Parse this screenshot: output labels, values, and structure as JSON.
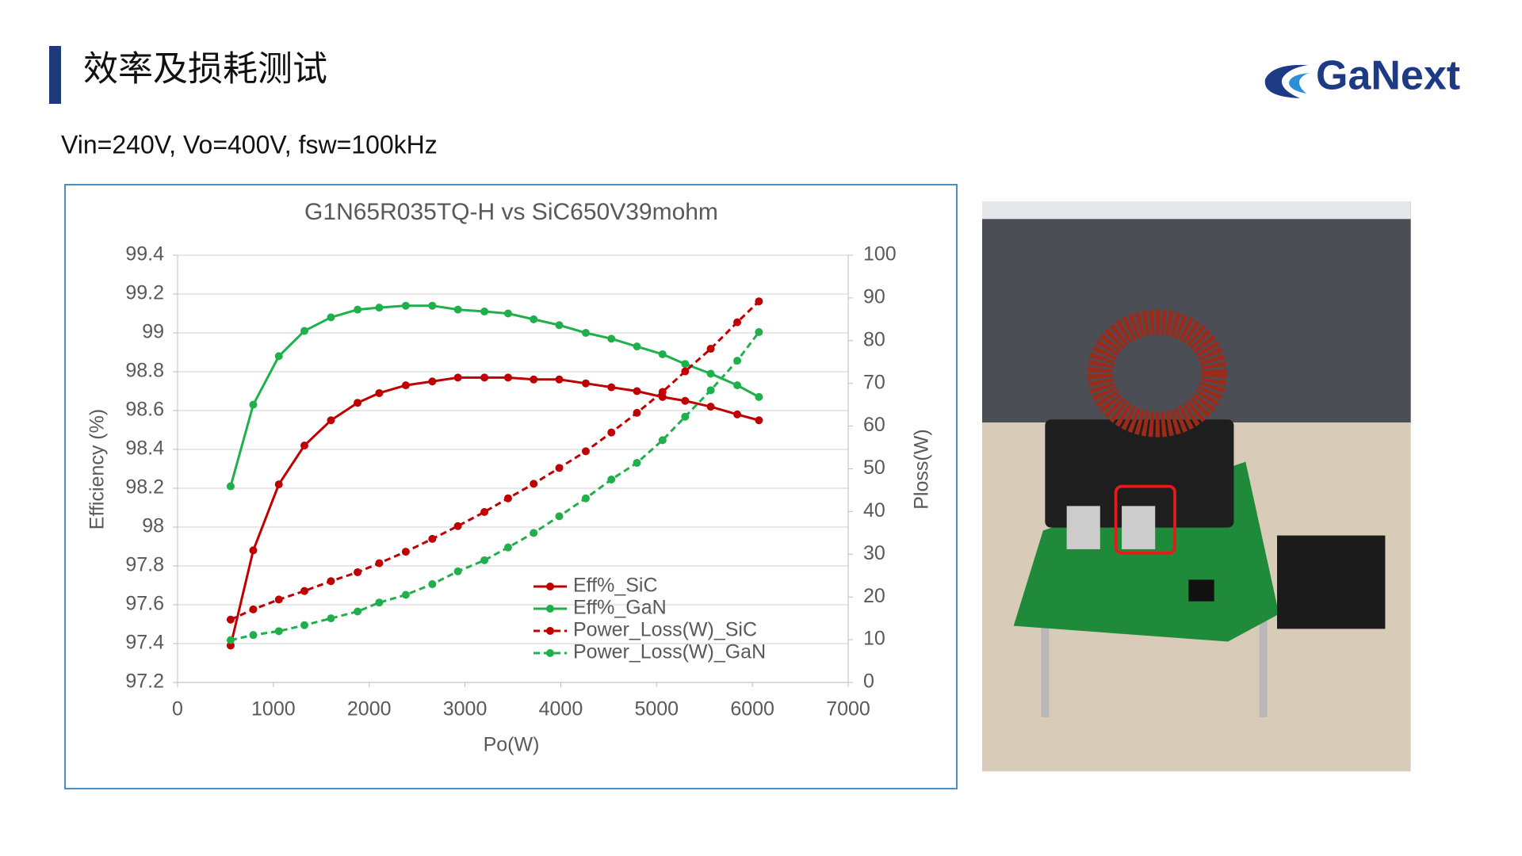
{
  "header": {
    "title": "效率及损耗测试",
    "subtitle": "Vin=240V, Vo=400V, fsw=100kHz",
    "logo": "GaNext"
  },
  "chart_data": {
    "type": "line",
    "title": "G1N65R035TQ-H vs SiC650V39mohm",
    "x_label": "Po(W)",
    "y_label": "Efficiency (%)",
    "y2_label": "Ploss(W)",
    "x": [
      554,
      790,
      1057,
      1324,
      1601,
      1879,
      2105,
      2382,
      2659,
      2926,
      3203,
      3450,
      3717,
      3984,
      4261,
      4528,
      4795,
      5062,
      5298,
      5565,
      5842,
      6068
    ],
    "series": [
      {
        "name": "Eff%_SiC",
        "color": "#c00000",
        "axis": "y",
        "dashed": false,
        "values": [
          97.39,
          97.88,
          98.22,
          98.42,
          98.55,
          98.64,
          98.69,
          98.73,
          98.75,
          98.77,
          98.77,
          98.77,
          98.76,
          98.76,
          98.74,
          98.72,
          98.7,
          98.67,
          98.65,
          98.62,
          98.58,
          98.55
        ]
      },
      {
        "name": "Eff%_GaN",
        "color": "#1fb04c",
        "axis": "y",
        "dashed": false,
        "values": [
          98.21,
          98.63,
          98.88,
          99.01,
          99.08,
          99.12,
          99.13,
          99.14,
          99.14,
          99.12,
          99.11,
          99.1,
          99.07,
          99.04,
          99.0,
          98.97,
          98.93,
          98.89,
          98.84,
          98.79,
          98.73,
          98.67
        ]
      },
      {
        "name": "Power_Loss(W)_SiC",
        "color": "#c00000",
        "axis": "y2",
        "dashed": true,
        "values": [
          14.7,
          17.1,
          19.4,
          21.4,
          23.7,
          25.8,
          27.9,
          30.6,
          33.6,
          36.6,
          39.9,
          43.1,
          46.5,
          50.2,
          54.1,
          58.5,
          63.1,
          68.0,
          72.8,
          78.1,
          84.3,
          89.2
        ]
      },
      {
        "name": "Power_Loss(W)_GaN",
        "color": "#1fb04c",
        "axis": "y2",
        "dashed": true,
        "values": [
          9.9,
          11.1,
          12.0,
          13.4,
          15.0,
          16.6,
          18.7,
          20.5,
          23.0,
          26.0,
          28.6,
          31.6,
          35.0,
          38.9,
          43.1,
          47.5,
          51.4,
          56.7,
          62.2,
          68.4,
          75.3,
          82.0
        ]
      }
    ],
    "xlim": [
      0,
      7000
    ],
    "xticks": [
      0,
      1000,
      2000,
      3000,
      4000,
      5000,
      6000,
      7000
    ],
    "ylim": [
      97.2,
      99.4
    ],
    "yticks": [
      97.2,
      97.4,
      97.6,
      97.8,
      98,
      98.2,
      98.4,
      98.6,
      98.8,
      99,
      99.2,
      99.4
    ],
    "y2lim": [
      0,
      100
    ],
    "y2ticks": [
      0,
      10,
      20,
      30,
      40,
      50,
      60,
      70,
      80,
      90,
      100
    ],
    "grid": true
  }
}
